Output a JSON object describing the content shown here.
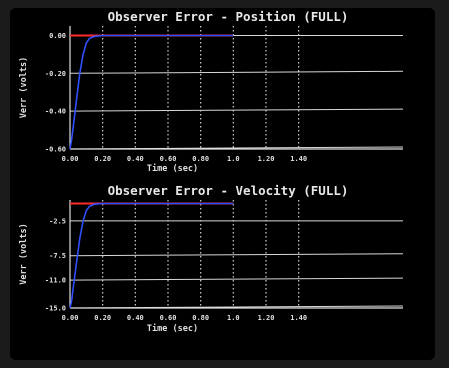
{
  "chart_data": [
    {
      "type": "line",
      "title": "Observer Error - Position (FULL)",
      "xlabel": "Time (sec)",
      "ylabel": "Verr (volts)",
      "xlim": [
        0,
        1.5
      ],
      "ylim": [
        -0.6,
        0.05
      ],
      "xticks": [
        "0.00",
        "0.20",
        "0.40",
        "0.60",
        "0.80",
        "1.0",
        "1.20",
        "1.40"
      ],
      "yticks": [
        {
          "value": 0.0,
          "label": "0.00"
        },
        {
          "value": -0.2,
          "label": "-0.20"
        },
        {
          "value": -0.4,
          "label": "-0.40"
        },
        {
          "value": -0.6,
          "label": "-0.60"
        }
      ],
      "grid": true,
      "series": [
        {
          "color": "#ff2a2a",
          "x": [
            0.0,
            1.0
          ],
          "y": [
            0.0,
            0.0
          ]
        },
        {
          "color": "#3050ff",
          "x": [
            0.0,
            0.01,
            0.02,
            0.04,
            0.06,
            0.08,
            0.1,
            0.12,
            0.15,
            0.2,
            1.0
          ],
          "y": [
            -0.6,
            -0.55,
            -0.48,
            -0.34,
            -0.2,
            -0.1,
            -0.04,
            -0.015,
            -0.005,
            0.0,
            0.0
          ]
        }
      ]
    },
    {
      "type": "line",
      "title": "Observer Error - Velocity (FULL)",
      "xlabel": "Time (sec)",
      "ylabel": "Verr (volts)",
      "xlim": [
        0,
        1.5
      ],
      "ylim": [
        -15.0,
        0.5
      ],
      "xticks": [
        "0.00",
        "0.20",
        "0.40",
        "0.60",
        "0.80",
        "1.0",
        "1.20",
        "1.40"
      ],
      "yticks": [
        {
          "value": -2.5,
          "label": "-2.5"
        },
        {
          "value": -7.5,
          "label": "-7.5"
        },
        {
          "value": -11.0,
          "label": "-11.0"
        },
        {
          "value": -15.0,
          "label": "-15.0"
        }
      ],
      "grid": true,
      "series": [
        {
          "color": "#ff2a2a",
          "x": [
            0.0,
            1.0
          ],
          "y": [
            0.0,
            0.0
          ]
        },
        {
          "color": "#3050ff",
          "x": [
            0.0,
            0.01,
            0.02,
            0.04,
            0.06,
            0.08,
            0.1,
            0.12,
            0.15,
            0.2,
            1.0
          ],
          "y": [
            -15.0,
            -14.0,
            -12.0,
            -8.5,
            -5.0,
            -2.5,
            -1.0,
            -0.4,
            -0.1,
            0.0,
            0.0
          ]
        }
      ]
    }
  ]
}
